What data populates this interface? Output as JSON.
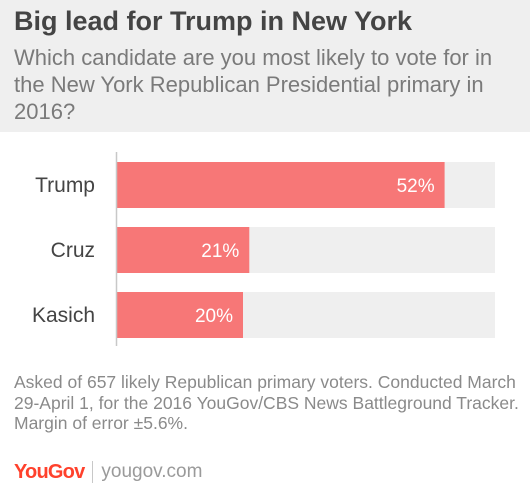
{
  "header": {
    "title": "Big lead for Trump in New York",
    "subtitle": "Which candidate are you most likely to vote for in the New York Republican Presidential primary in 2016?"
  },
  "chart_data": {
    "type": "bar",
    "orientation": "horizontal",
    "categories": [
      "Trump",
      "Cruz",
      "Kasich"
    ],
    "values": [
      52,
      21,
      20
    ],
    "value_labels": [
      "52%",
      "21%",
      "20%"
    ],
    "xlim": [
      0,
      60
    ],
    "grid": false,
    "legend": "none",
    "colors": {
      "bar": "#f77777",
      "track": "#efefef",
      "axis": "#c8c8c8",
      "label": "#444444",
      "value_text": "#ffffff"
    }
  },
  "footer": {
    "note": "Asked of 657 likely Republican primary voters. Conducted March 29-April 1, for the 2016 YouGov/CBS News Battleground Tracker. Margin of error ±5.6%.",
    "logo_text": "YouGov",
    "site": "yougov.com",
    "brand_color": "#ff412c"
  }
}
